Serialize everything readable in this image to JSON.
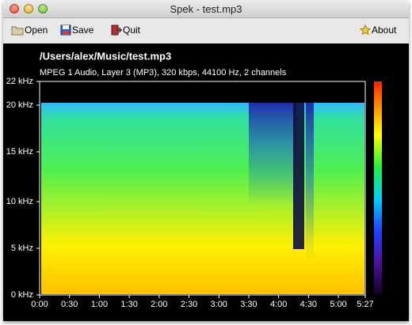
{
  "window": {
    "title": "Spek - test.mp3"
  },
  "toolbar": {
    "open": "Open",
    "save": "Save",
    "quit": "Quit",
    "about": "About"
  },
  "spectrogram": {
    "file": "/Users/alex/Music/test.mp3",
    "info": "MPEG 1 Audio, Layer 3 (MP3), 320 kbps, 44100 Hz, 2 channels",
    "frequency_labels": [
      "0 kHz",
      "5 kHz",
      "10 kHz",
      "15 kHz",
      "20 kHz",
      "22 kHz"
    ],
    "time_labels": [
      "0:00",
      "0:30",
      "1:00",
      "1:30",
      "2:00",
      "2:30",
      "3:00",
      "3:30",
      "4:00",
      "4:30",
      "5:00",
      "5:27"
    ]
  }
}
